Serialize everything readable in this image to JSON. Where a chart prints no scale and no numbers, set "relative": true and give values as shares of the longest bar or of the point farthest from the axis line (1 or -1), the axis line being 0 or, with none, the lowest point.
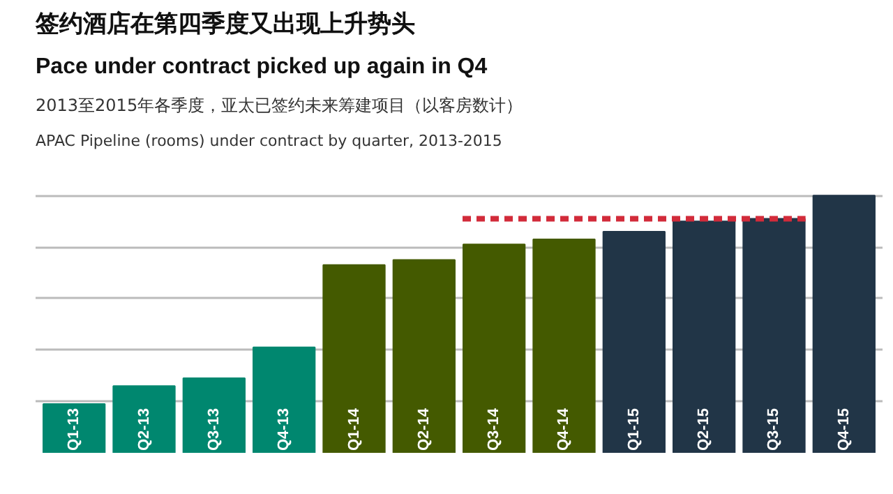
{
  "chart_data": {
    "type": "bar",
    "title": "签约酒店在第四季度又出现上升势头",
    "subtitle": "Pace under contract picked up again in Q4",
    "annotations": [
      "2013至2015年各季度，亚太已签约未来筹建项目（以客房数计）",
      "APAC Pipeline (rooms) under contract by quarter, 2013-2015"
    ],
    "relative": true,
    "grid": "y",
    "categories": [
      "Q1-13",
      "Q2-13",
      "Q3-13",
      "Q4-13",
      "Q1-14",
      "Q2-14",
      "Q3-14",
      "Q4-14",
      "Q1-15",
      "Q2-15",
      "Q3-15",
      "Q4-15"
    ],
    "values": [
      0.19,
      0.26,
      0.29,
      0.41,
      0.73,
      0.75,
      0.81,
      0.83,
      0.86,
      0.9,
      0.91,
      1.0
    ],
    "colors": [
      "#00876f",
      "#00876f",
      "#00876f",
      "#00876f",
      "#445a00",
      "#445a00",
      "#445a00",
      "#445a00",
      "#213547",
      "#213547",
      "#213547",
      "#213547"
    ],
    "ref_lines": [
      {
        "axis": "y",
        "value": 0.91,
        "label": null,
        "color": "#d22b3a",
        "line_style": "dashed"
      }
    ]
  }
}
